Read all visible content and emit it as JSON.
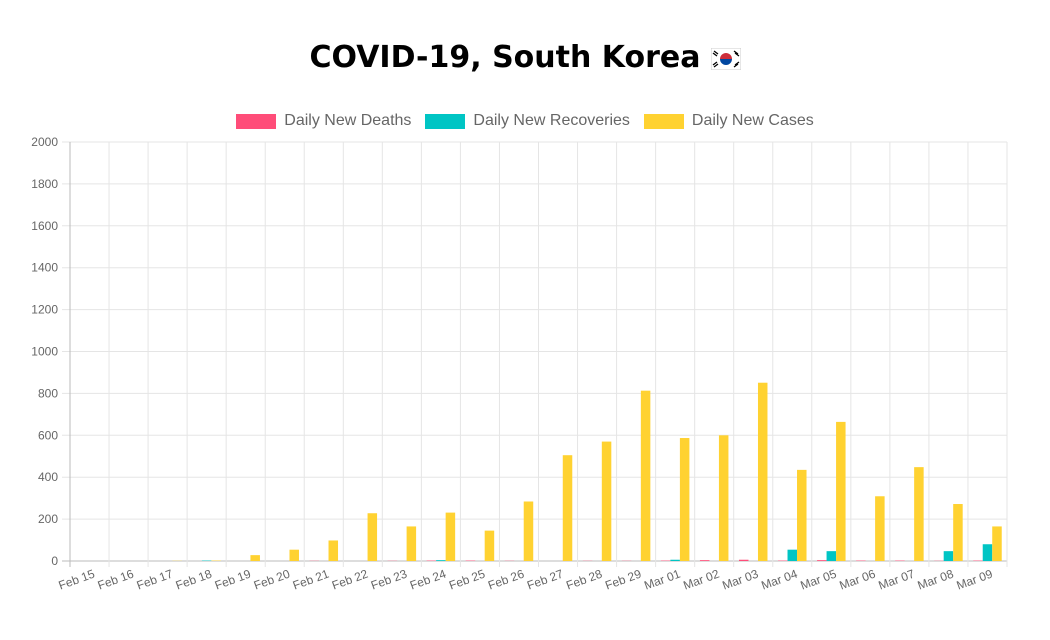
{
  "title": "COVID-19, South Korea",
  "flag_icon": "south-korea-flag-icon",
  "chart_data": {
    "type": "bar",
    "categories": [
      "Feb 15",
      "Feb 16",
      "Feb 17",
      "Feb 18",
      "Feb 19",
      "Feb 20",
      "Feb 21",
      "Feb 22",
      "Feb 23",
      "Feb 24",
      "Feb 25",
      "Feb 26",
      "Feb 27",
      "Feb 28",
      "Feb 29",
      "Mar 01",
      "Mar 02",
      "Mar 03",
      "Mar 04",
      "Mar 05",
      "Mar 06",
      "Mar 07",
      "Mar 08",
      "Mar 09"
    ],
    "series": [
      {
        "name": "Daily New Deaths",
        "color": "#ff4d79",
        "values": [
          0,
          0,
          0,
          0,
          0,
          0,
          1,
          0,
          1,
          2,
          2,
          1,
          0,
          1,
          1,
          2,
          4,
          6,
          2,
          4,
          2,
          2,
          1,
          2
        ]
      },
      {
        "name": "Daily New Recoveries",
        "color": "#00c5c4",
        "values": [
          0,
          0,
          0,
          2,
          0,
          0,
          0,
          0,
          0,
          4,
          0,
          0,
          0,
          0,
          0,
          6,
          0,
          0,
          54,
          47,
          0,
          0,
          47,
          80
        ]
      },
      {
        "name": "Daily New Cases",
        "color": "#ffd231",
        "values": [
          0,
          0,
          1,
          2,
          28,
          54,
          98,
          228,
          165,
          231,
          145,
          284,
          505,
          570,
          813,
          587,
          600,
          851,
          435,
          664,
          309,
          448,
          272,
          165
        ]
      }
    ],
    "ylim": [
      0,
      2000
    ],
    "yticks": [
      0,
      200,
      400,
      600,
      800,
      1000,
      1200,
      1400,
      1600,
      1800,
      2000
    ],
    "grid": true,
    "legend_position": "top"
  }
}
